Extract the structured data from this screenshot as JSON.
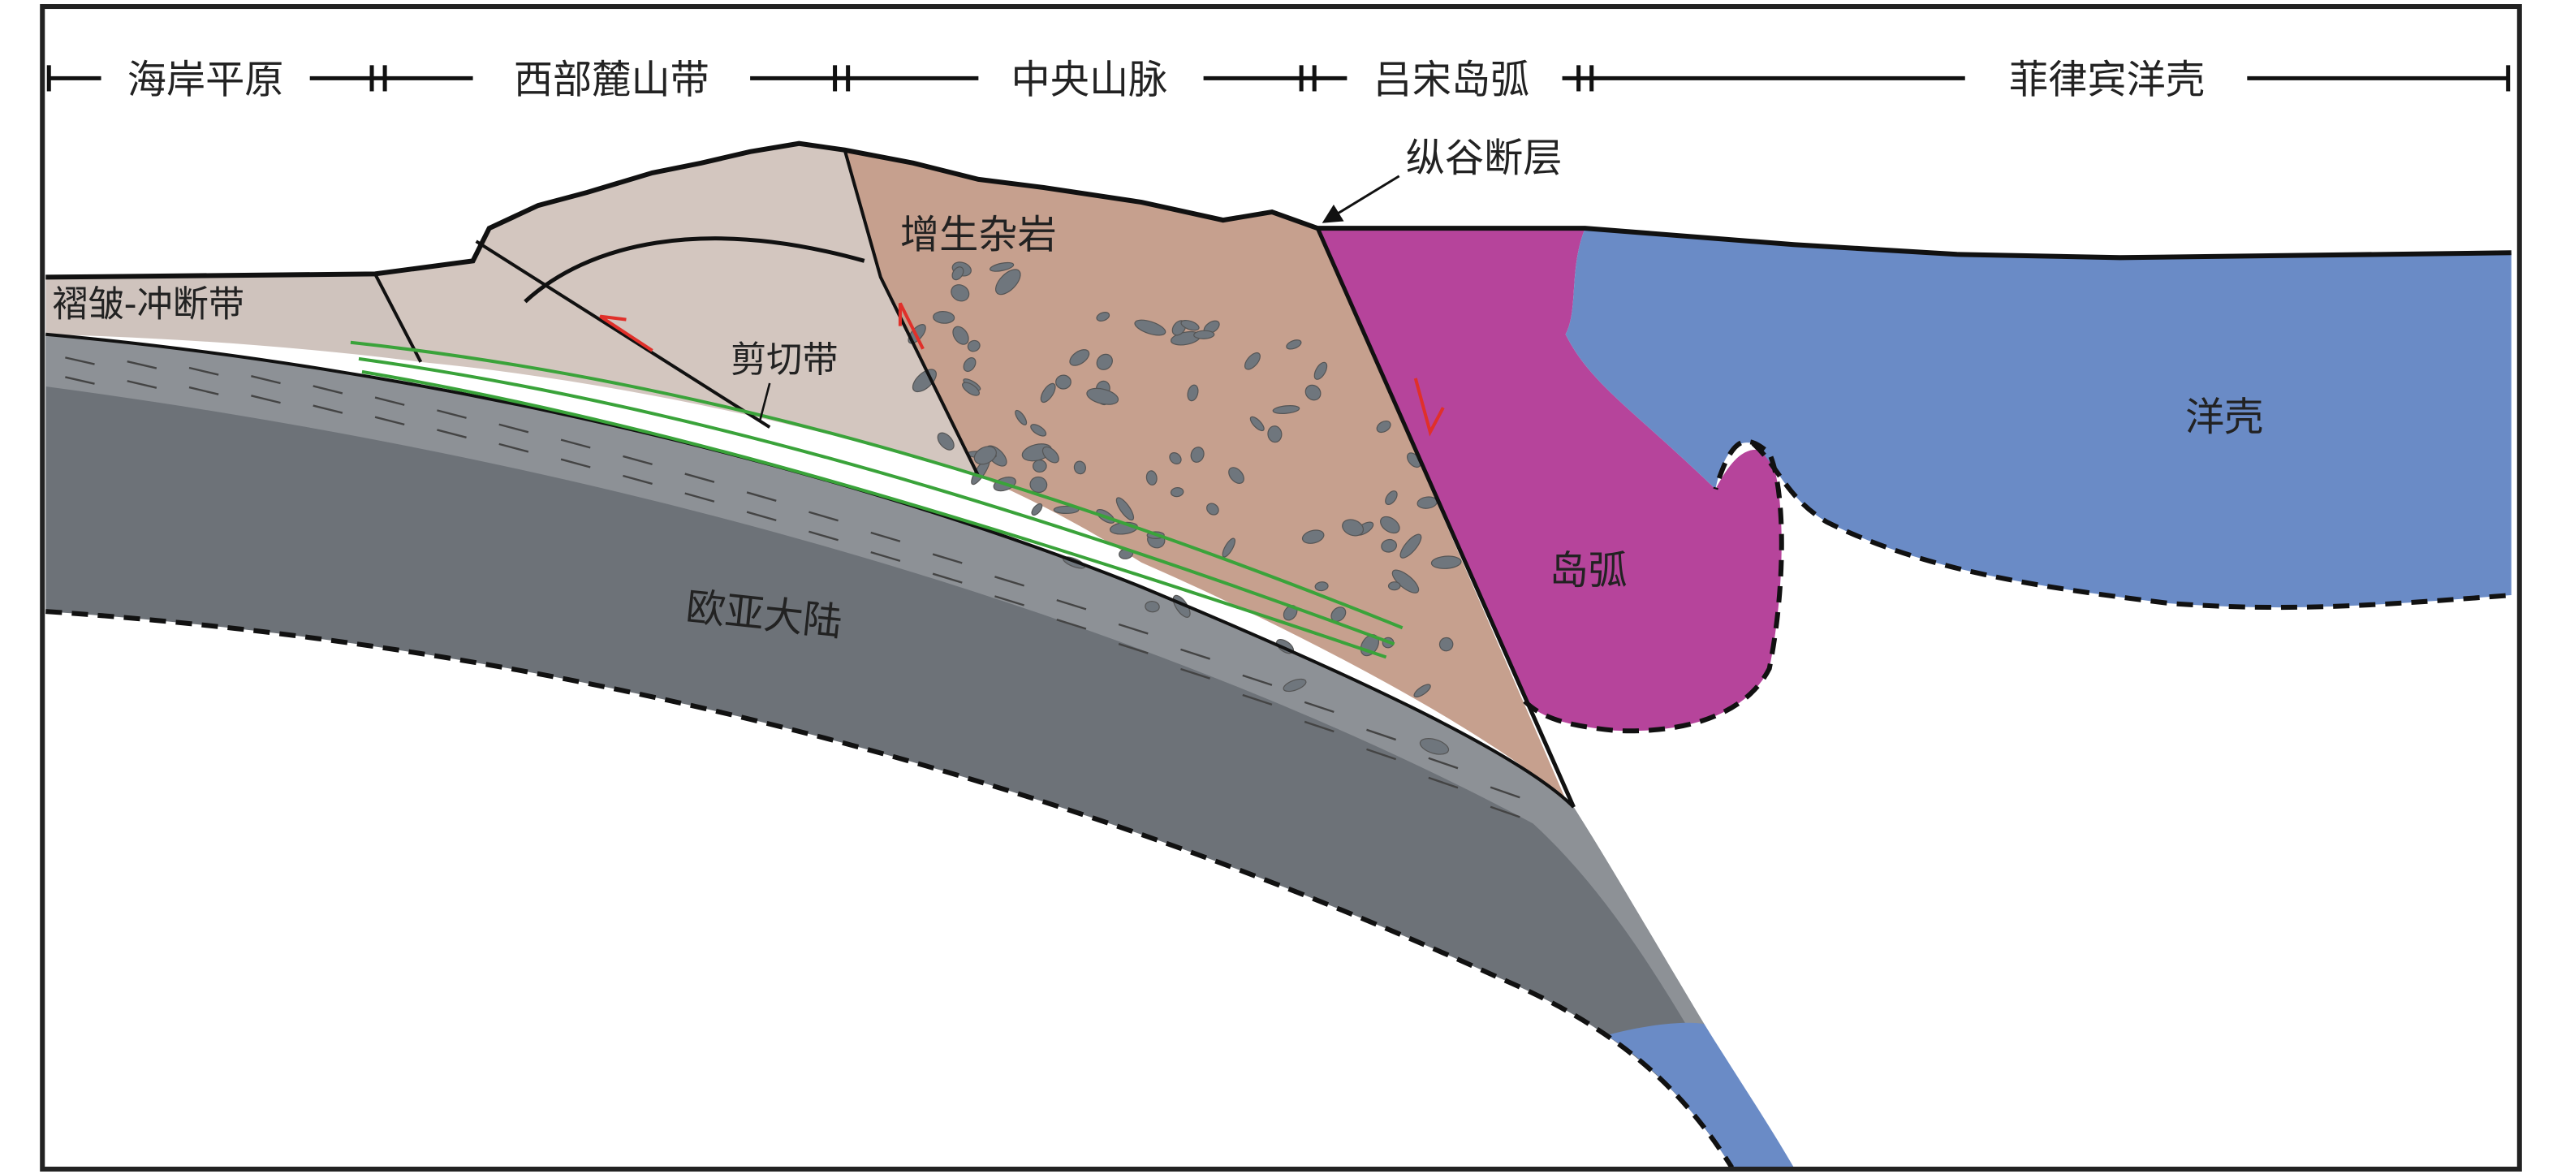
{
  "regions": [
    "海岸平原",
    "西部麓山带",
    "中央山脉",
    "吕宋岛弧",
    "菲律宾洋壳"
  ],
  "labels": {
    "fault": "纵谷断层",
    "accretion": "增生杂岩",
    "fold_thrust": "褶皱-冲断带",
    "shear": "剪切带",
    "ocean_crust": "洋壳",
    "island_arc": "岛弧",
    "continent": "欧亚大陆"
  },
  "colors": {
    "continent": "#6d7278",
    "continent_upper": "#8d9196",
    "wedge": "#d3c6bf",
    "accretion": "#c6a08e",
    "island_arc": "#b6449b",
    "ocean_crust": "#6a8bc6",
    "shear_lines": "#3aa33a",
    "arrows": "#e0302a"
  }
}
